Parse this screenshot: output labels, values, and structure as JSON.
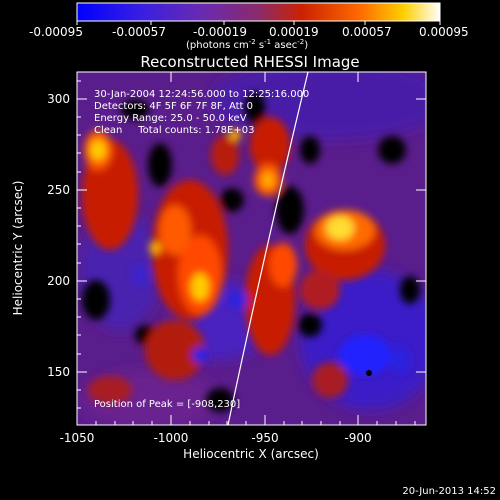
{
  "colorbar": {
    "tick_labels": [
      "-0.00095",
      "-0.00057",
      "-0.00019",
      "0.00019",
      "0.00057",
      "0.00095"
    ],
    "units_prefix": "(photons cm",
    "units_exp1": "-2",
    "units_s": " s",
    "units_exp2": "-1",
    "units_asec": " asec",
    "units_exp3": "-2",
    "units_close": ")",
    "gradient_colors": [
      "#0000ff",
      "#5a22cc",
      "#7a2fa8",
      "#c0281c",
      "#ff5a00",
      "#ffd000",
      "#ffffff"
    ]
  },
  "image": {
    "title": "Reconstructed RHESSI Image",
    "info_lines": [
      "30-Jan-2004 12:24:56.000 to 12:25:16.000",
      "Detectors: 4F 5F 6F 7F 8F, Att 0",
      "Energy Range: 25.0 - 50.0 keV",
      "Clean     Total counts: 1.78E+03"
    ],
    "peak_label": "Position of Peak = [-908,230]",
    "x_axis_title": "Heliocentric X (arcsec)",
    "y_axis_title": "Heliocentric Y (arcsec)",
    "x_ticks": [
      "-1050",
      "-1000",
      "-950",
      "-900"
    ],
    "y_ticks": [
      "300",
      "250",
      "200",
      "150"
    ],
    "x_range": [
      -1050,
      -865
    ],
    "y_range": [
      120,
      315
    ],
    "timestamp": "20-Jun-2013 14:52"
  }
}
